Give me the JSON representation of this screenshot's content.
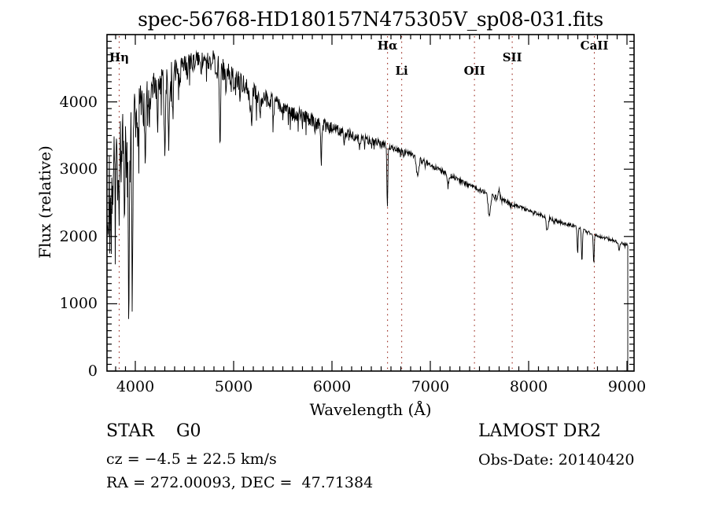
{
  "chart_data": {
    "type": "line",
    "title": "spec-56768-HD180157N475305V_sp08-031.fits",
    "xlabel": "Wavelength (Å)",
    "ylabel": "Flux (relative)",
    "xlim": [
      3712,
      9072
    ],
    "ylim": [
      0,
      5000
    ],
    "x_ticks": [
      4000,
      5000,
      6000,
      7000,
      8000,
      9000
    ],
    "y_ticks": [
      0,
      1000,
      2000,
      3000,
      4000
    ],
    "x_minor_step": 100,
    "y_minor_step": 100,
    "grid": false,
    "legend": "none",
    "axis_color": "#000000",
    "line_color": "#000000",
    "spectral_marker_color": "#9b2b20",
    "spectral_lines": [
      {
        "label": "Hη",
        "wavelength": 3836,
        "level": 1
      },
      {
        "label": "Hα",
        "wavelength": 6565,
        "level": 0
      },
      {
        "label": "Li",
        "wavelength": 6709,
        "level": 2
      },
      {
        "label": "OII",
        "wavelength": 7449,
        "level": 2
      },
      {
        "label": "SII",
        "wavelength": 7833,
        "level": 1
      },
      {
        "label": "CaII",
        "wavelength": 8668,
        "level": 0
      }
    ],
    "series": [
      {
        "name": "spectrum",
        "noise_seed": 977,
        "sample_step_angstrom": 4,
        "start_wavelength": 3716,
        "cutoff_wavelength": 9008,
        "end_drop_to": 0,
        "continuum": [
          [
            3716,
            2700
          ],
          [
            3740,
            3100
          ],
          [
            3780,
            3400
          ],
          [
            3820,
            3600
          ],
          [
            3860,
            3750
          ],
          [
            3900,
            3850
          ],
          [
            3950,
            3900
          ],
          [
            4000,
            4000
          ],
          [
            4080,
            4150
          ],
          [
            4160,
            4250
          ],
          [
            4240,
            4350
          ],
          [
            4320,
            4420
          ],
          [
            4400,
            4500
          ],
          [
            4480,
            4570
          ],
          [
            4560,
            4620
          ],
          [
            4640,
            4650
          ],
          [
            4720,
            4660
          ],
          [
            4800,
            4600
          ],
          [
            4880,
            4520
          ],
          [
            4960,
            4420
          ],
          [
            5040,
            4330
          ],
          [
            5120,
            4240
          ],
          [
            5200,
            4170
          ],
          [
            5280,
            4100
          ],
          [
            5360,
            4040
          ],
          [
            5440,
            3980
          ],
          [
            5520,
            3920
          ],
          [
            5600,
            3860
          ],
          [
            5680,
            3810
          ],
          [
            5760,
            3760
          ],
          [
            5840,
            3700
          ],
          [
            5920,
            3660
          ],
          [
            6000,
            3620
          ],
          [
            6080,
            3580
          ],
          [
            6160,
            3540
          ],
          [
            6240,
            3500
          ],
          [
            6320,
            3450
          ],
          [
            6400,
            3420
          ],
          [
            6480,
            3390
          ],
          [
            6565,
            3350
          ],
          [
            6650,
            3300
          ],
          [
            6750,
            3250
          ],
          [
            6850,
            3190
          ],
          [
            6950,
            3110
          ],
          [
            7050,
            3030
          ],
          [
            7150,
            2950
          ],
          [
            7250,
            2870
          ],
          [
            7350,
            2800
          ],
          [
            7450,
            2720
          ],
          [
            7550,
            2660
          ],
          [
            7650,
            2600
          ],
          [
            7750,
            2540
          ],
          [
            7850,
            2470
          ],
          [
            7950,
            2420
          ],
          [
            8050,
            2360
          ],
          [
            8150,
            2310
          ],
          [
            8250,
            2250
          ],
          [
            8350,
            2200
          ],
          [
            8450,
            2160
          ],
          [
            8550,
            2100
          ],
          [
            8650,
            2040
          ],
          [
            8750,
            1990
          ],
          [
            8850,
            1950
          ],
          [
            8950,
            1900
          ],
          [
            9008,
            1880
          ]
        ],
        "noise_amplitude": [
          [
            3716,
            900
          ],
          [
            3760,
            750
          ],
          [
            3800,
            650
          ],
          [
            3860,
            560
          ],
          [
            3920,
            520
          ],
          [
            3980,
            480
          ],
          [
            4050,
            400
          ],
          [
            4150,
            350
          ],
          [
            4250,
            330
          ],
          [
            4350,
            300
          ],
          [
            4450,
            270
          ],
          [
            4550,
            240
          ],
          [
            4650,
            220
          ],
          [
            4750,
            215
          ],
          [
            4850,
            215
          ],
          [
            4950,
            200
          ],
          [
            5050,
            180
          ],
          [
            5150,
            170
          ],
          [
            5250,
            160
          ],
          [
            5350,
            150
          ],
          [
            5450,
            140
          ],
          [
            5550,
            130
          ],
          [
            5650,
            125
          ],
          [
            5750,
            120
          ],
          [
            5850,
            115
          ],
          [
            5950,
            110
          ],
          [
            6050,
            100
          ],
          [
            6150,
            95
          ],
          [
            6250,
            85
          ],
          [
            6350,
            80
          ],
          [
            6450,
            70
          ],
          [
            6550,
            60
          ],
          [
            6650,
            55
          ],
          [
            6750,
            50
          ],
          [
            6850,
            50
          ],
          [
            6950,
            45
          ],
          [
            7050,
            45
          ],
          [
            7250,
            40
          ],
          [
            7450,
            40
          ],
          [
            7650,
            38
          ],
          [
            7850,
            35
          ],
          [
            8050,
            32
          ],
          [
            8250,
            32
          ],
          [
            8450,
            30
          ],
          [
            8650,
            28
          ],
          [
            8850,
            26
          ],
          [
            9008,
            25
          ]
        ],
        "absorption_lines": [
          [
            3727,
            700,
            5
          ],
          [
            3750,
            850,
            6
          ],
          [
            3771,
            800,
            5
          ],
          [
            3798,
            950,
            5
          ],
          [
            3820,
            850,
            5
          ],
          [
            3835,
            1350,
            6
          ],
          [
            3860,
            700,
            5
          ],
          [
            3889,
            1400,
            6
          ],
          [
            3910,
            650,
            5
          ],
          [
            3933,
            2790,
            6
          ],
          [
            3969,
            2630,
            6
          ],
          [
            4026,
            550,
            5
          ],
          [
            4101,
            950,
            6
          ],
          [
            4144,
            450,
            5
          ],
          [
            4226,
            600,
            5
          ],
          [
            4300,
            1000,
            8
          ],
          [
            4340,
            1150,
            6
          ],
          [
            4383,
            600,
            5
          ],
          [
            4455,
            350,
            5
          ],
          [
            4531,
            320,
            5
          ],
          [
            4668,
            300,
            5
          ],
          [
            4861,
            1320,
            5
          ],
          [
            4920,
            300,
            5
          ],
          [
            5167,
            400,
            7
          ],
          [
            5183,
            380,
            6
          ],
          [
            5270,
            320,
            6
          ],
          [
            5406,
            200,
            5
          ],
          [
            5890,
            420,
            7
          ],
          [
            6122,
            180,
            5
          ],
          [
            6280,
            160,
            6
          ],
          [
            6563,
            900,
            5
          ],
          [
            6870,
            260,
            12
          ],
          [
            7180,
            140,
            9
          ],
          [
            7600,
            300,
            12
          ],
          [
            7700,
            -130,
            8
          ],
          [
            8183,
            170,
            5
          ],
          [
            8195,
            170,
            5
          ],
          [
            8498,
            380,
            5
          ],
          [
            8542,
            470,
            5
          ],
          [
            8662,
            420,
            5
          ],
          [
            8920,
            140,
            5
          ]
        ]
      }
    ]
  },
  "annotations": {
    "object_class": "STAR    G0",
    "survey": "LAMOST DR2",
    "cz": "cz = −4.5 ± 22.5 km/s",
    "obs_date": "Obs-Date: 20140420",
    "ra_dec": "RA = 272.00093, DEC =  47.71384"
  }
}
